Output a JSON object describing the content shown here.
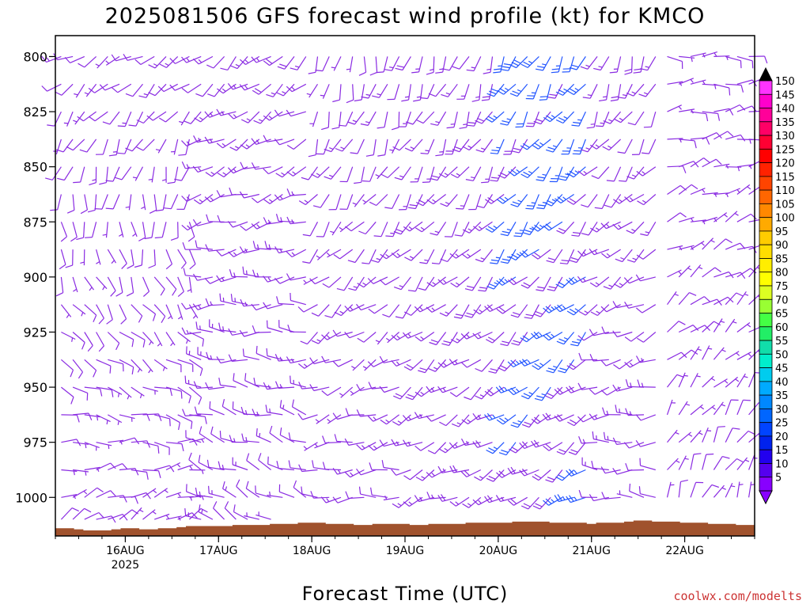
{
  "chart_data": {
    "type": "wind_profile",
    "title": "2025081506 GFS forecast wind profile (kt) for KMCO",
    "xlabel": "Forecast Time (UTC)",
    "ylabel": "",
    "credit": "coolwx.com/modelts",
    "y_ticks": [
      800,
      825,
      850,
      875,
      900,
      925,
      950,
      975,
      1000
    ],
    "ylim": [
      800,
      1017
    ],
    "x_ticks": [
      {
        "label": "16AUG",
        "sub": "2025",
        "hours": 18
      },
      {
        "label": "17AUG",
        "sub": "",
        "hours": 42
      },
      {
        "label": "18AUG",
        "sub": "",
        "hours": 66
      },
      {
        "label": "19AUG",
        "sub": "",
        "hours": 90
      },
      {
        "label": "20AUG",
        "sub": "",
        "hours": 114
      },
      {
        "label": "21AUG",
        "sub": "",
        "hours": 138
      },
      {
        "label": "22AUG",
        "sub": "",
        "hours": 162
      }
    ],
    "xlim_hours": [
      0,
      180
    ],
    "timestep_hours": 3,
    "levels_hpa": [
      800,
      812.5,
      825,
      837.5,
      850,
      862.5,
      875,
      887.5,
      900,
      912.5,
      925,
      937.5,
      950,
      962.5,
      975,
      987.5,
      1000,
      1010
    ],
    "surface_pressure_hpa": [
      1014,
      1014,
      1014.5,
      1015,
      1015,
      1015,
      1014.5,
      1014,
      1014,
      1014.5,
      1014.5,
      1014,
      1014,
      1013.5,
      1013,
      1013,
      1013,
      1013,
      1013,
      1012.5,
      1012.5,
      1012.5,
      1012.5,
      1012,
      1012,
      1012,
      1011.5,
      1011.5,
      1011.5,
      1012,
      1012,
      1012,
      1012.5,
      1012.5,
      1012,
      1012,
      1012,
      1012,
      1012.5,
      1012.5,
      1012,
      1012,
      1012,
      1012,
      1011.5,
      1011.5,
      1011.5,
      1011.5,
      1011.5,
      1011,
      1011,
      1011,
      1011,
      1011.5,
      1011.5,
      1011.5,
      1011.5,
      1012,
      1011.5,
      1011.5,
      1011.5,
      1011,
      1010.5,
      1010.5,
      1011,
      1011,
      1011,
      1011.5,
      1011.5,
      1011.5,
      1012,
      1012,
      1012,
      1012.5,
      1012.5
    ],
    "colorbar": {
      "values": [
        150,
        145,
        140,
        135,
        130,
        125,
        120,
        115,
        110,
        105,
        100,
        95,
        90,
        85,
        80,
        75,
        70,
        65,
        60,
        55,
        50,
        45,
        40,
        35,
        30,
        25,
        20,
        15,
        10,
        5
      ],
      "colors": [
        "#ff33ff",
        "#ff00cc",
        "#ff0099",
        "#ff0066",
        "#ff0033",
        "#ff0000",
        "#ff2200",
        "#ff4400",
        "#ff6600",
        "#ff8800",
        "#ffaa00",
        "#ffcc00",
        "#ffdd00",
        "#ffee00",
        "#ffff00",
        "#ddff22",
        "#99ff33",
        "#44ff44",
        "#22ee66",
        "#11ddaa",
        "#00eecc",
        "#00ccee",
        "#00aaff",
        "#0088ff",
        "#0066ff",
        "#0044ff",
        "#0022ee",
        "#2200ee",
        "#5500ee",
        "#8800ff"
      ],
      "top_cap": "#000000"
    },
    "colors": {
      "barb_default": "#8a2be2",
      "barb_strong": "#2255ff",
      "surface": "#a0522d"
    },
    "wind_regimes": [
      {
        "from_hours": 0,
        "to_hours": 36,
        "upper_dir": 240,
        "upper_spd": 10,
        "lower_dir": 60,
        "lower_spd": 8
      },
      {
        "from_hours": 36,
        "to_hours": 66,
        "upper_dir": 230,
        "upper_spd": 15,
        "lower_dir": 300,
        "lower_spd": 10
      },
      {
        "from_hours": 66,
        "to_hours": 90,
        "upper_dir": 190,
        "upper_spd": 10,
        "lower_dir": 270,
        "lower_spd": 10
      },
      {
        "from_hours": 90,
        "to_hours": 114,
        "upper_dir": 200,
        "upper_spd": 15,
        "lower_dir": 250,
        "lower_spd": 15
      },
      {
        "from_hours": 114,
        "to_hours": 138,
        "upper_dir": 210,
        "upper_spd": 25,
        "lower_dir": 240,
        "lower_spd": 20
      },
      {
        "from_hours": 138,
        "to_hours": 156,
        "upper_dir": 200,
        "upper_spd": 15,
        "lower_dir": 280,
        "lower_spd": 10
      },
      {
        "from_hours": 156,
        "to_hours": 180,
        "upper_dir": 90,
        "upper_spd": 8,
        "lower_dir": 20,
        "lower_spd": 6
      }
    ]
  }
}
